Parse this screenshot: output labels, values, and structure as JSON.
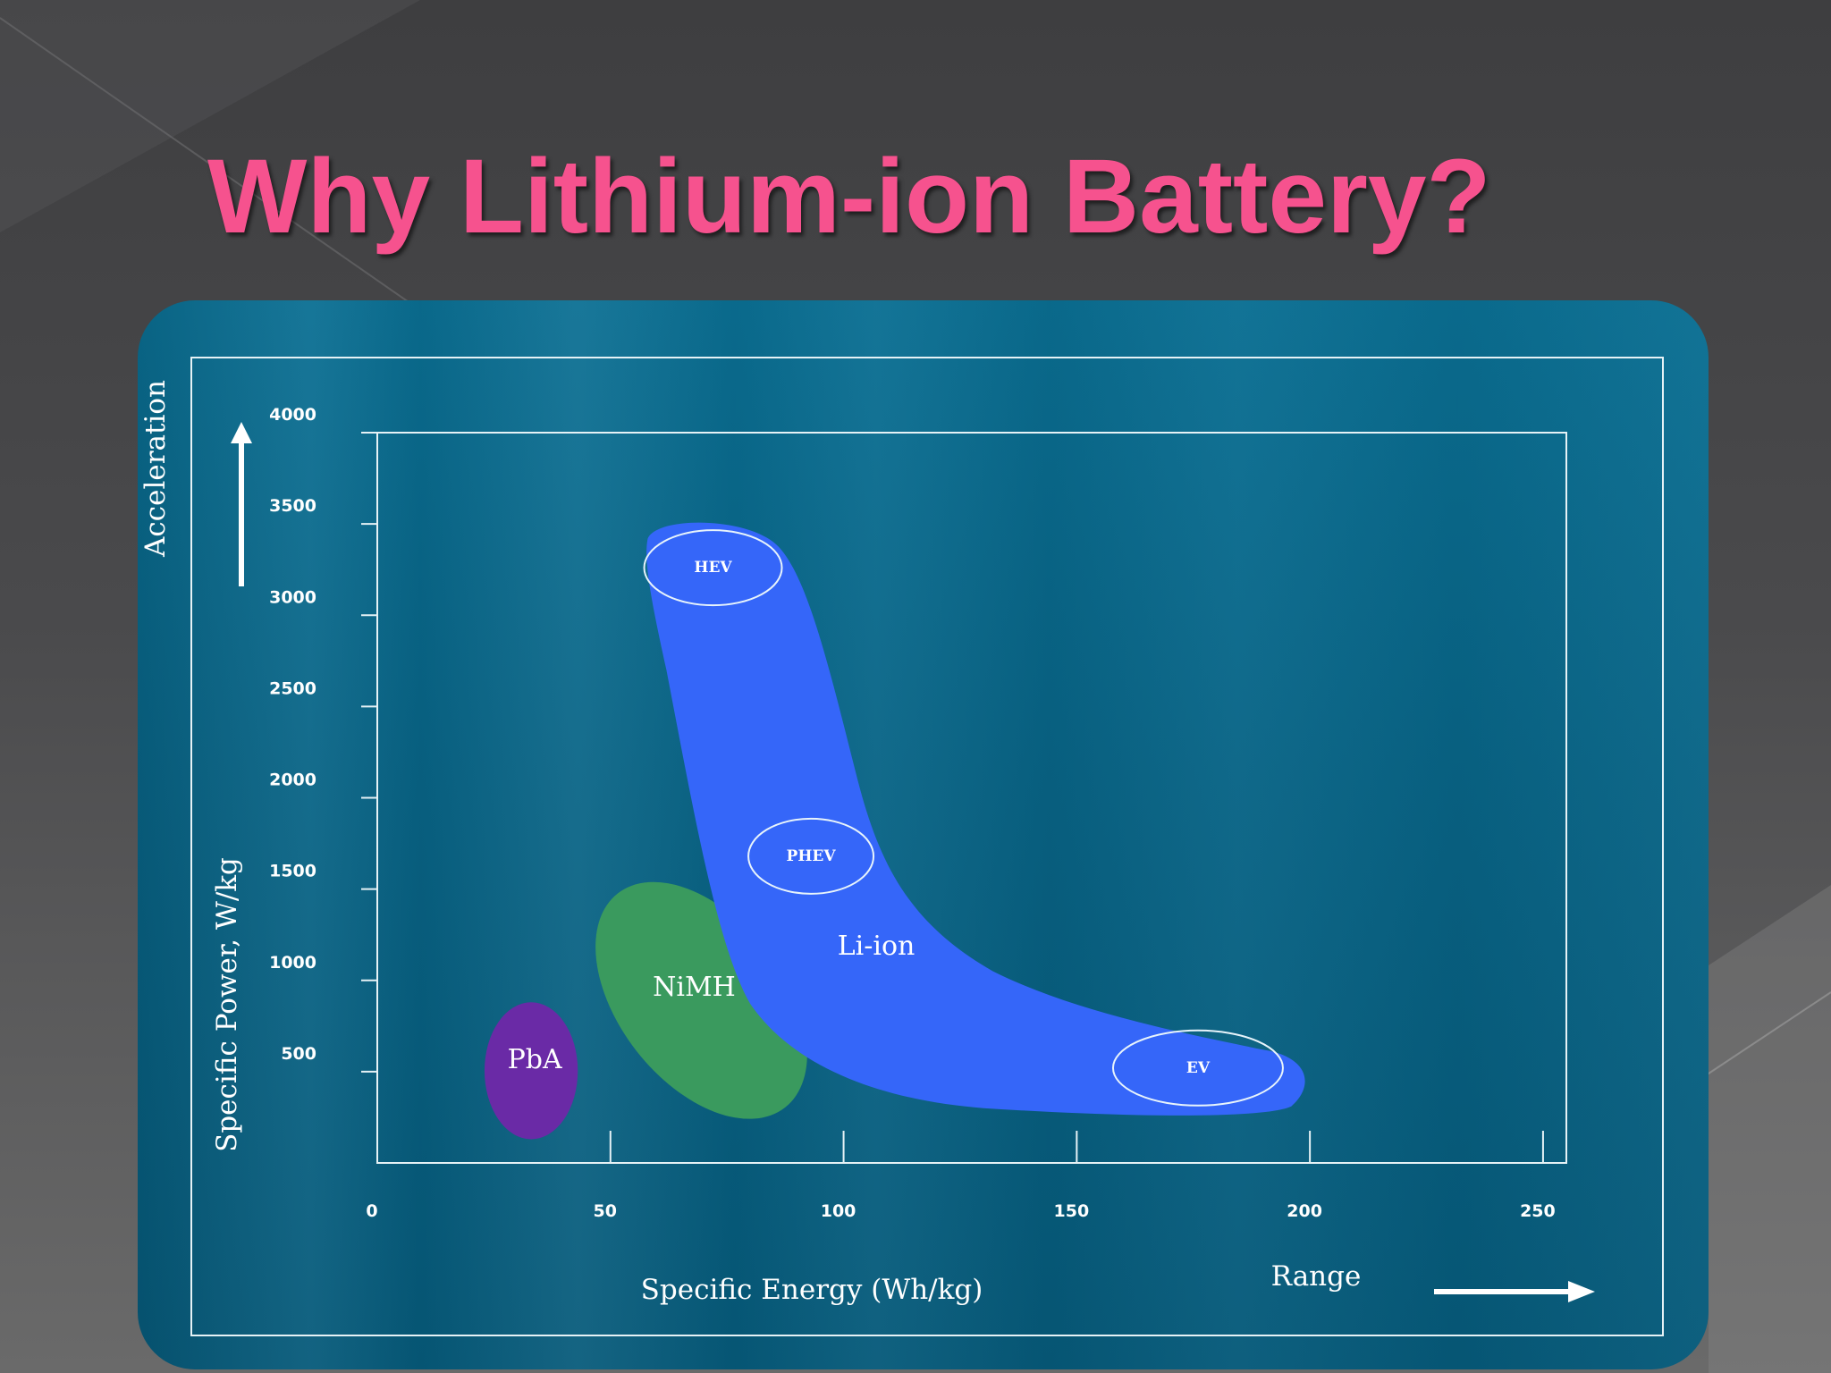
{
  "slide": {
    "title": "Why Lithium-ion Battery?",
    "title_color": "#f6528e",
    "panel_color": "#086486"
  },
  "chart_data": {
    "type": "scatter",
    "title": "",
    "xlabel": "Specific Energy (Wh/kg)",
    "ylabel": "Specific Power, W/kg",
    "xlim": [
      0,
      255
    ],
    "ylim": [
      0,
      4000
    ],
    "x_ticks": [
      0,
      50,
      100,
      150,
      200,
      250
    ],
    "y_ticks": [
      500,
      1000,
      1500,
      2000,
      2500,
      3000,
      3500,
      4000
    ],
    "grid": false,
    "legend": "none",
    "direction_labels": {
      "y": "Acceleration",
      "x": "Range"
    },
    "regions": [
      {
        "name": "PbA",
        "color": "#6a2aa6",
        "x_range": [
          23,
          43
        ],
        "y_range": [
          130,
          880
        ]
      },
      {
        "name": "NiMH",
        "color": "#3a9a5e",
        "x_range": [
          45,
          94
        ],
        "y_range": [
          290,
          1490
        ]
      },
      {
        "name": "Li-ion",
        "color": "#3566f9",
        "x_range": [
          58,
          199
        ],
        "y_range": [
          230,
          3500
        ]
      }
    ],
    "applications": [
      {
        "name": "HEV",
        "x": 72,
        "y": 3260
      },
      {
        "name": "PHEV",
        "x": 93,
        "y": 1680
      },
      {
        "name": "EV",
        "x": 176,
        "y": 520
      }
    ]
  }
}
